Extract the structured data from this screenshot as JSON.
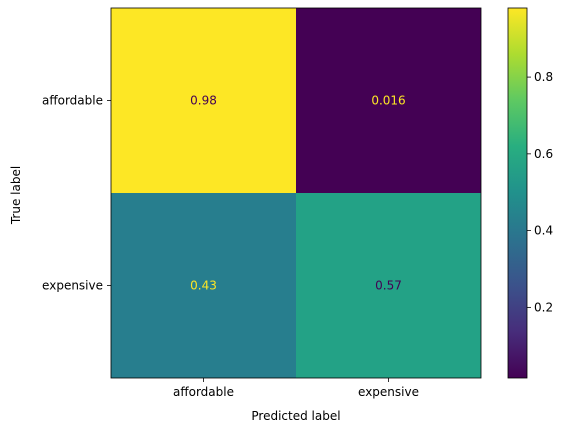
{
  "chart_data": {
    "type": "heatmap",
    "title": "",
    "xlabel": "Predicted label",
    "ylabel": "True label",
    "x_categories": [
      "affordable",
      "expensive"
    ],
    "y_categories": [
      "affordable",
      "expensive"
    ],
    "values": [
      [
        0.98,
        0.016
      ],
      [
        0.43,
        0.57
      ]
    ],
    "cell_labels": [
      [
        "0.98",
        "0.016"
      ],
      [
        "0.43",
        "0.57"
      ]
    ],
    "colormap": "viridis",
    "colorbar": {
      "vmin": 0.016,
      "vmax": 0.98,
      "ticks": [
        0.2,
        0.4,
        0.6,
        0.8
      ],
      "tick_labels": [
        "0.2",
        "0.4",
        "0.6",
        "0.8"
      ]
    },
    "label_colors": {
      "on_dark": "#fde725",
      "on_light": "#440154"
    },
    "grid": false
  }
}
